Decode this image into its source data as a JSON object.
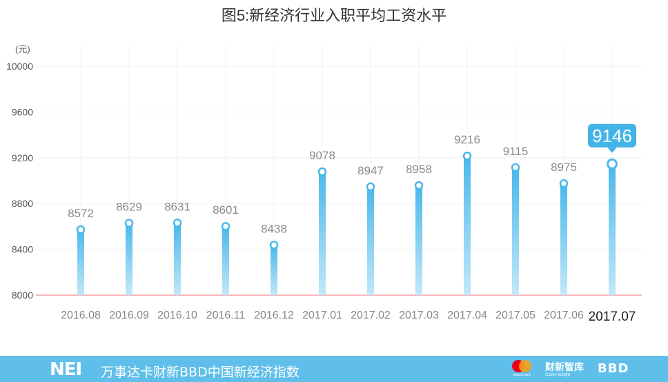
{
  "chart_data": {
    "type": "bar",
    "title": "图5:新经济行业入职平均工资水平",
    "ylabel": "(元)",
    "categories": [
      "2016.08",
      "2016.09",
      "2016.10",
      "2016.11",
      "2016.12",
      "2017.01",
      "2017.02",
      "2017.03",
      "2017.04",
      "2017.05",
      "2017.06",
      "2017.07"
    ],
    "values": [
      8572,
      8629,
      8631,
      8601,
      8438,
      9078,
      8947,
      8958,
      9216,
      9115,
      8975,
      9146
    ],
    "ylim": [
      8000,
      10000
    ],
    "yticks": [
      "8000",
      "8400",
      "8800",
      "9200",
      "9600",
      "10000"
    ],
    "highlight_index": 11,
    "grid": true,
    "colors": {
      "bar_top": "#4ab8ea",
      "bar_bottom": "#b9e4f8",
      "baseline": "#f2a0a8",
      "callout": "#43b4e8",
      "grid": "#f1f1f1"
    }
  },
  "footer": {
    "logo": "NEI",
    "title": "万事达卡财新BBD中国新经济指数",
    "mastercard_caption": "mastercard",
    "caixin_name": "财新智库",
    "caixin_caption": "Caixin Insight",
    "bbd": "BBD",
    "colors": {
      "background": "#5fbfea"
    }
  }
}
